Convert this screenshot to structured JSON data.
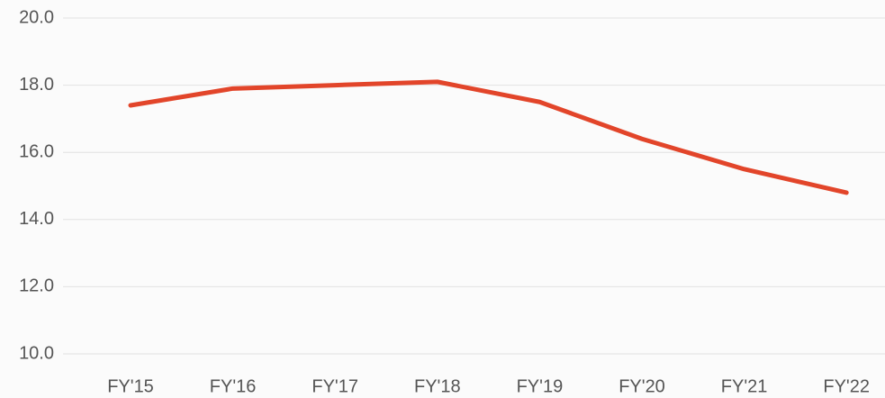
{
  "chart_data": {
    "type": "line",
    "categories": [
      "FY'15",
      "FY'16",
      "FY'17",
      "FY'18",
      "FY'19",
      "FY'20",
      "FY'21",
      "FY'22"
    ],
    "series": [
      {
        "color": "#e2452a",
        "values": [
          17.4,
          17.9,
          18.0,
          18.1,
          17.5,
          16.4,
          15.5,
          14.8
        ]
      }
    ],
    "ylim": [
      10,
      20
    ],
    "yticks": [
      {
        "value": 10,
        "label": "10.0"
      },
      {
        "value": 12,
        "label": "12.0"
      },
      {
        "value": 14,
        "label": "14.0"
      },
      {
        "value": 16,
        "label": "16.0"
      },
      {
        "value": 18,
        "label": "18.0"
      },
      {
        "value": 20,
        "label": "20.0"
      }
    ],
    "grid": true
  }
}
